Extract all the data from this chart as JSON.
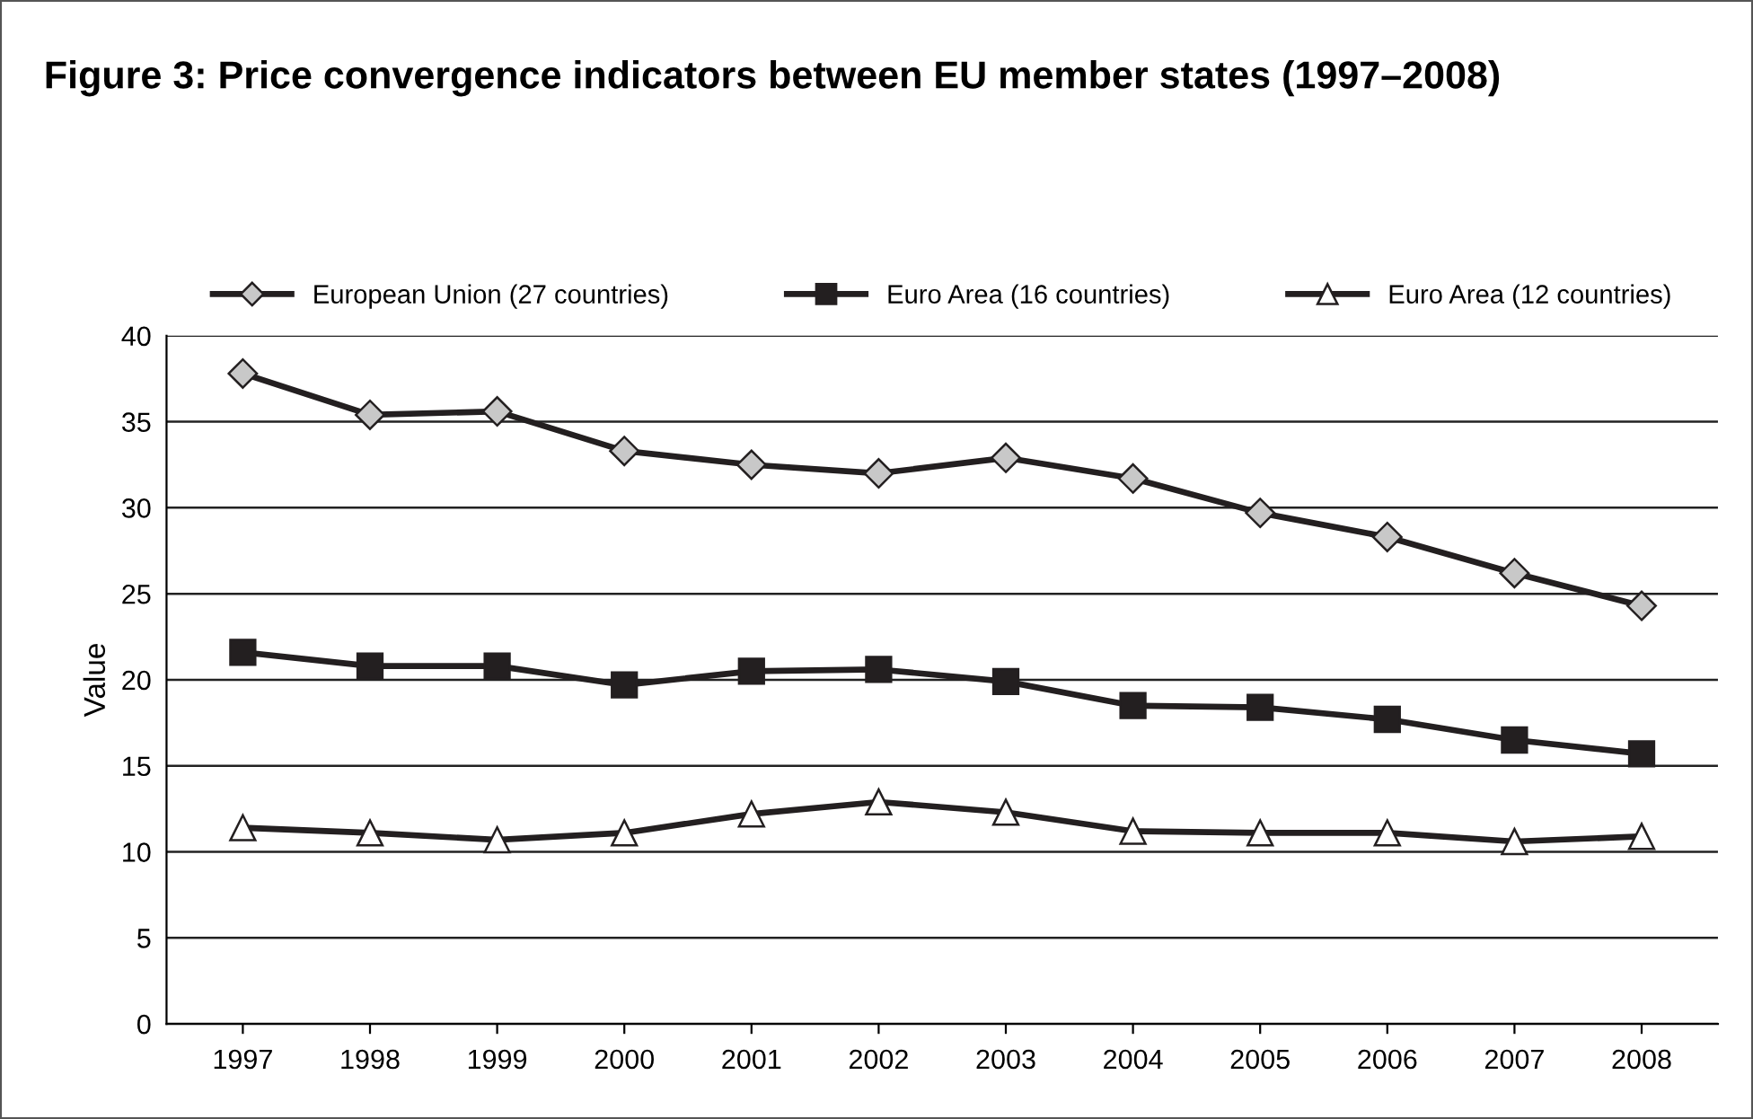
{
  "chart_data": {
    "type": "line",
    "title": "Figure 3: Price convergence indicators between EU member states (1997–2008)",
    "ylabel": "Value",
    "categories": [
      "1997",
      "1998",
      "1999",
      "2000",
      "2001",
      "2002",
      "2003",
      "2004",
      "2005",
      "2006",
      "2007",
      "2008"
    ],
    "series": [
      {
        "name": "European Union (27 countries)",
        "color": "#c8c8c8",
        "marker": "diamond",
        "values": [
          37.8,
          35.4,
          35.6,
          33.3,
          32.5,
          32.0,
          32.9,
          31.7,
          29.7,
          28.3,
          26.2,
          24.3
        ]
      },
      {
        "name": "Euro Area (16 countries)",
        "color": "#231f20",
        "marker": "square",
        "values": [
          21.6,
          20.8,
          20.8,
          19.7,
          20.5,
          20.6,
          19.9,
          18.5,
          18.4,
          17.7,
          16.5,
          15.7
        ]
      },
      {
        "name": "Euro Area (12 countries)",
        "color": "#ffffff",
        "marker": "triangle",
        "values": [
          11.4,
          11.1,
          10.7,
          11.1,
          12.2,
          12.9,
          12.3,
          11.2,
          11.1,
          11.1,
          10.6,
          10.9
        ]
      }
    ],
    "ylim": [
      0,
      40
    ],
    "yticks": [
      0,
      5,
      10,
      15,
      20,
      25,
      30,
      35,
      40
    ],
    "grid": "y",
    "legend": "top",
    "line_style": "solid"
  }
}
